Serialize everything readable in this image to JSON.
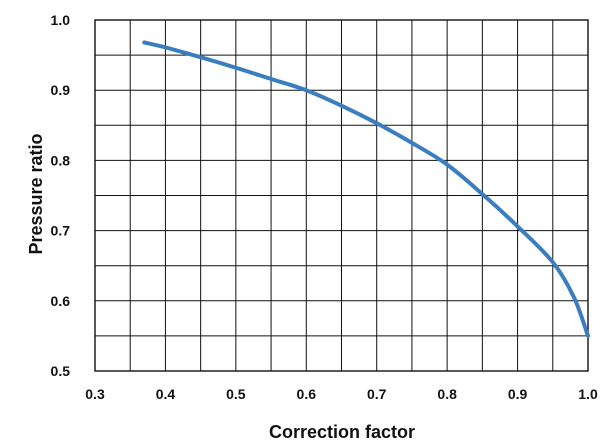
{
  "chart_data": {
    "type": "line",
    "xlabel": "Correction factor",
    "ylabel": "Pressure ratio",
    "xlim": [
      0.3,
      1.0
    ],
    "ylim": [
      0.5,
      1.0
    ],
    "x_ticks": [
      0.3,
      0.4,
      0.5,
      0.6,
      0.7,
      0.8,
      0.9,
      1.0
    ],
    "y_ticks": [
      0.5,
      0.6,
      0.7,
      0.8,
      0.9,
      1.0
    ],
    "x_tick_labels": [
      "0.3",
      "0.4",
      "0.5",
      "0.6",
      "0.7",
      "0.8",
      "0.9",
      "1.0"
    ],
    "y_tick_labels": [
      "0.5",
      "0.6",
      "0.7",
      "0.8",
      "0.9",
      "1.0"
    ],
    "grid": true,
    "x_grid_step": 0.05,
    "y_grid_step": 0.05,
    "series": [
      {
        "x": [
          0.37,
          0.4,
          0.45,
          0.5,
          0.55,
          0.6,
          0.65,
          0.7,
          0.75,
          0.8,
          0.85,
          0.9,
          0.95,
          0.98,
          1.0
        ],
        "y": [
          0.968,
          0.961,
          0.947,
          0.932,
          0.916,
          0.9,
          0.878,
          0.853,
          0.825,
          0.794,
          0.752,
          0.706,
          0.655,
          0.605,
          0.55
        ]
      }
    ]
  },
  "colors": {
    "series": "#3a7dc0",
    "grid": "#111111",
    "text": "#111111",
    "background": "#ffffff"
  }
}
